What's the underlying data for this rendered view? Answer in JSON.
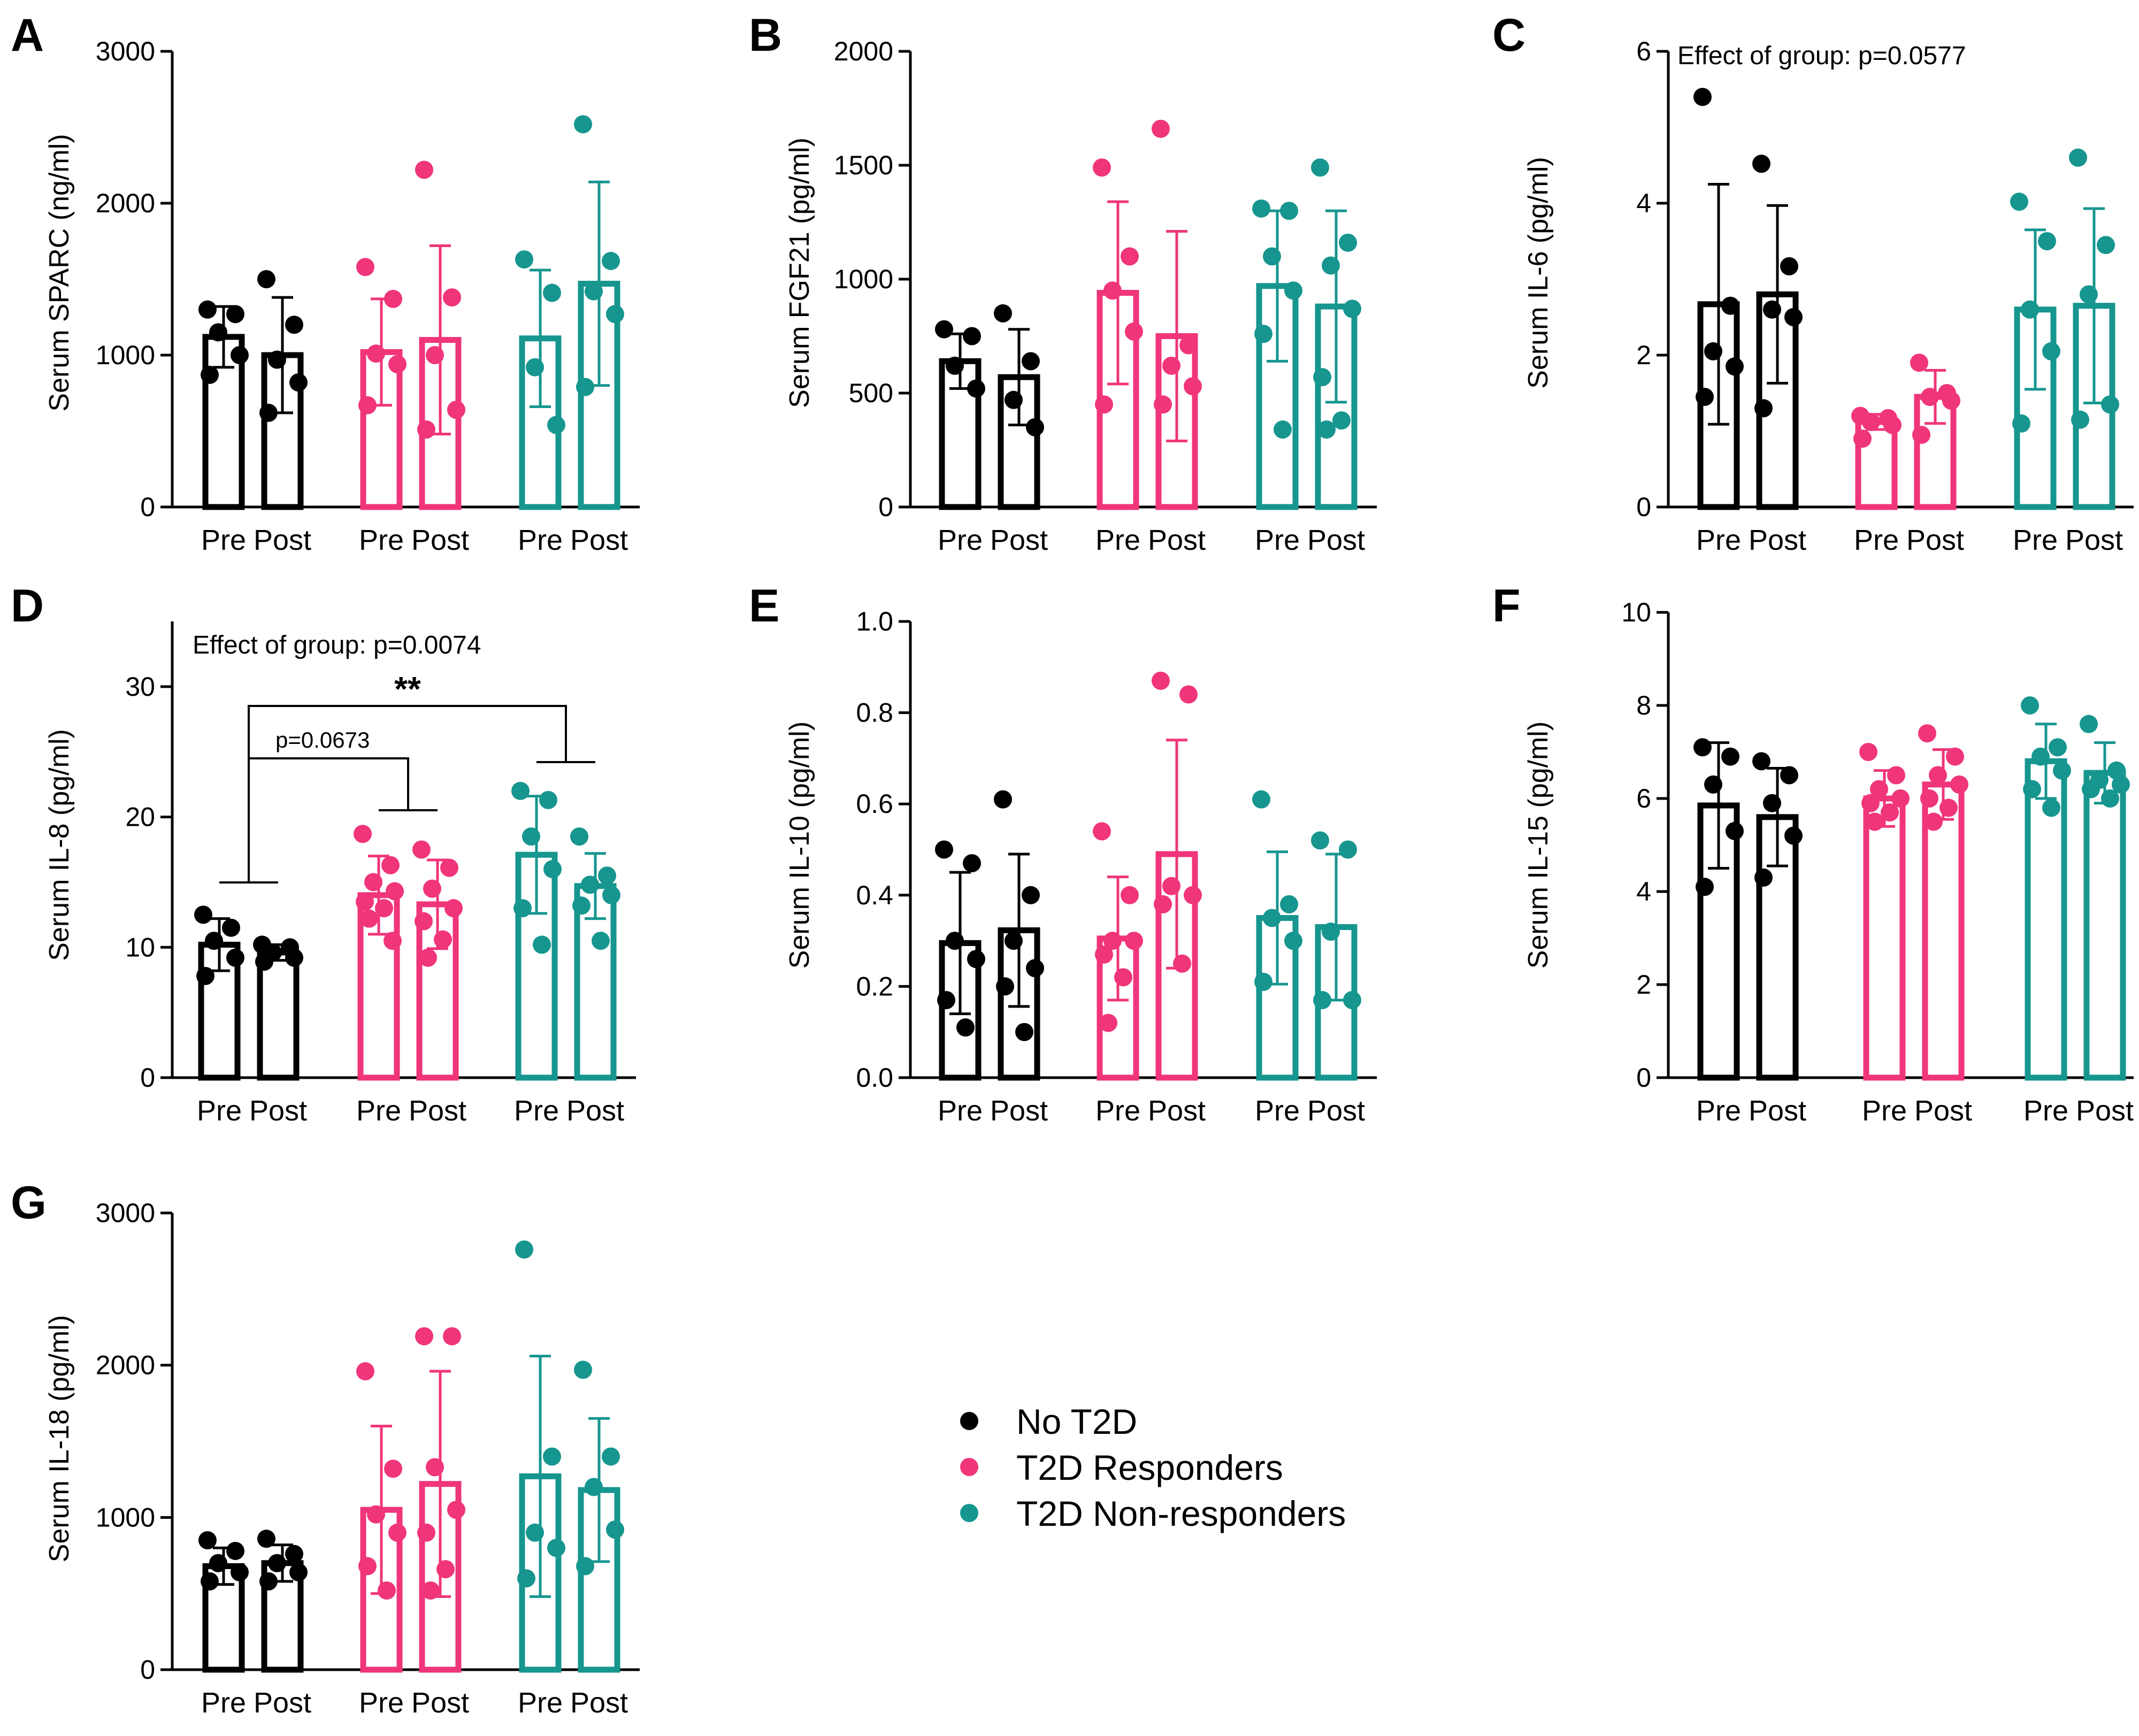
{
  "legend": [
    {
      "label": "No T2D",
      "color": "#000000"
    },
    {
      "label": "T2D Responders",
      "color": "#f0357a"
    },
    {
      "label": "T2D Non-responders",
      "color": "#16968f"
    }
  ],
  "chart_data": [
    {
      "panel": "A",
      "type": "bar",
      "ylabel": "Serum SPARC (ng/ml)",
      "ylim": [
        0,
        3000
      ],
      "yticks": [
        0,
        1000,
        2000,
        3000
      ],
      "tick_labels": [
        "0",
        "1000",
        "2000",
        "3000"
      ],
      "categories": [
        "Pre",
        "Post",
        "Pre",
        "Post",
        "Pre",
        "Post"
      ],
      "series": [
        {
          "name": "No T2D",
          "mean": [
            1120,
            1000
          ],
          "sd": [
            200,
            380
          ],
          "points": [
            [
              1300,
              1270,
              1150,
              1000,
              870
            ],
            [
              1500,
              1200,
              970,
              820,
              620
            ]
          ]
        },
        {
          "name": "T2D Responders",
          "mean": [
            1020,
            1100
          ],
          "sd": [
            350,
            620
          ],
          "points": [
            [
              1580,
              1370,
              1010,
              940,
              670
            ],
            [
              2220,
              1380,
              1000,
              640,
              510
            ]
          ]
        },
        {
          "name": "T2D Non-responders",
          "mean": [
            1110,
            1470
          ],
          "sd": [
            450,
            670
          ],
          "points": [
            [
              1630,
              1410,
              920,
              540
            ],
            [
              2520,
              1620,
              1420,
              1270,
              790
            ]
          ]
        }
      ]
    },
    {
      "panel": "B",
      "type": "bar",
      "ylabel": "Serum FGF21 (pg/ml)",
      "ylim": [
        0,
        2000
      ],
      "yticks": [
        0,
        500,
        1000,
        1500,
        2000
      ],
      "tick_labels": [
        "0",
        "500",
        "1000",
        "1500",
        "2000"
      ],
      "categories": [
        "Pre",
        "Post",
        "Pre",
        "Post",
        "Pre",
        "Post"
      ],
      "series": [
        {
          "name": "No T2D",
          "mean": [
            640,
            570
          ],
          "sd": [
            120,
            210
          ],
          "points": [
            [
              780,
              750,
              620,
              520
            ],
            [
              850,
              640,
              470,
              350
            ]
          ]
        },
        {
          "name": "T2D Responders",
          "mean": [
            940,
            750
          ],
          "sd": [
            400,
            460
          ],
          "points": [
            [
              1490,
              1100,
              950,
              770,
              450
            ],
            [
              1660,
              710,
              620,
              530,
              450
            ]
          ]
        },
        {
          "name": "T2D Non-responders",
          "mean": [
            970,
            880
          ],
          "sd": [
            330,
            420
          ],
          "points": [
            [
              1310,
              1300,
              1100,
              950,
              760,
              340
            ],
            [
              1490,
              1160,
              1060,
              870,
              570,
              380,
              340
            ]
          ]
        }
      ]
    },
    {
      "panel": "C",
      "type": "bar",
      "ylabel": "Serum IL-6 (pg/ml)",
      "ylim": [
        0,
        6
      ],
      "yticks": [
        0,
        2,
        4,
        6
      ],
      "tick_labels": [
        "0",
        "2",
        "4",
        "6"
      ],
      "categories": [
        "Pre",
        "Post",
        "Pre",
        "Post",
        "Pre",
        "Post"
      ],
      "annotation": "Effect of group: p=0.0577",
      "series": [
        {
          "name": "No T2D",
          "mean": [
            2.67,
            2.8
          ],
          "sd": [
            1.58,
            1.17
          ],
          "points": [
            [
              5.4,
              2.65,
              2.05,
              1.85,
              1.45
            ],
            [
              4.52,
              3.17,
              2.6,
              2.5,
              1.3
            ]
          ]
        },
        {
          "name": "T2D Responders",
          "mean": [
            1.12,
            1.45
          ],
          "sd": [
            0.1,
            0.35
          ],
          "points": [
            [
              1.2,
              1.17,
              1.12,
              1.08,
              0.9
            ],
            [
              1.9,
              1.5,
              1.45,
              1.4,
              0.95
            ]
          ]
        },
        {
          "name": "T2D Non-responders",
          "mean": [
            2.6,
            2.65
          ],
          "sd": [
            1.05,
            1.28
          ],
          "points": [
            [
              4.02,
              3.5,
              2.6,
              2.05,
              1.1
            ],
            [
              4.6,
              3.45,
              2.8,
              1.35,
              1.15
            ]
          ]
        }
      ]
    },
    {
      "panel": "D",
      "type": "bar",
      "ylabel": "Serum IL-8 (pg/ml)",
      "ylim": [
        0,
        35
      ],
      "yticks": [
        0,
        10,
        20,
        30
      ],
      "tick_labels": [
        "0",
        "10",
        "20",
        "30"
      ],
      "categories": [
        "Pre",
        "Post",
        "Pre",
        "Post",
        "Pre",
        "Post"
      ],
      "annotation": "Effect of group: p=0.0074",
      "significance": {
        "stars": "**",
        "p_text": "p=0.0673"
      },
      "series": [
        {
          "name": "No T2D",
          "mean": [
            10.2,
            9.6
          ],
          "sd": [
            2.0,
            0.6
          ],
          "points": [
            [
              12.5,
              11.5,
              10.5,
              9.2,
              7.8
            ],
            [
              10.2,
              10.0,
              9.6,
              9.2,
              8.9
            ]
          ]
        },
        {
          "name": "T2D Responders",
          "mean": [
            14.0,
            13.3
          ],
          "sd": [
            3.0,
            3.4
          ],
          "points": [
            [
              18.7,
              16.3,
              15.0,
              14.3,
              13.5,
              13.0,
              12.2,
              10.5
            ],
            [
              17.5,
              16.1,
              14.5,
              13.0,
              12.0,
              10.6,
              9.2
            ]
          ]
        },
        {
          "name": "T2D Non-responders",
          "mean": [
            17.1,
            14.7
          ],
          "sd": [
            4.5,
            2.5
          ],
          "points": [
            [
              22.0,
              21.3,
              18.5,
              16.0,
              13.0,
              10.2
            ],
            [
              18.5,
              15.5,
              14.8,
              14.0,
              13.2,
              10.5
            ]
          ]
        }
      ]
    },
    {
      "panel": "E",
      "type": "bar",
      "ylabel": "Serum IL-10 (pg/ml)",
      "ylim": [
        0,
        1.0
      ],
      "yticks": [
        0.0,
        0.2,
        0.4,
        0.6,
        0.8,
        1.0
      ],
      "tick_labels": [
        "0.0",
        "0.2",
        "0.4",
        "0.6",
        "0.8",
        "1.0"
      ],
      "categories": [
        "Pre",
        "Post",
        "Pre",
        "Post",
        "Pre",
        "Post"
      ],
      "series": [
        {
          "name": "No T2D",
          "mean": [
            0.295,
            0.323
          ],
          "sd": [
            0.155,
            0.167
          ],
          "points": [
            [
              0.5,
              0.47,
              0.3,
              0.26,
              0.17,
              0.11
            ],
            [
              0.61,
              0.4,
              0.3,
              0.24,
              0.2,
              0.1
            ]
          ]
        },
        {
          "name": "T2D Responders",
          "mean": [
            0.305,
            0.49
          ],
          "sd": [
            0.135,
            0.25
          ],
          "points": [
            [
              0.54,
              0.4,
              0.3,
              0.3,
              0.27,
              0.22,
              0.12
            ],
            [
              0.87,
              0.84,
              0.42,
              0.4,
              0.38,
              0.25
            ]
          ]
        },
        {
          "name": "T2D Non-responders",
          "mean": [
            0.35,
            0.33
          ],
          "sd": [
            0.145,
            0.16
          ],
          "points": [
            [
              0.61,
              0.38,
              0.35,
              0.3,
              0.21
            ],
            [
              0.52,
              0.5,
              0.32,
              0.17,
              0.17
            ]
          ]
        }
      ]
    },
    {
      "panel": "F",
      "type": "bar",
      "ylabel": "Serum IL-15 (pg/ml)",
      "ylim": [
        0,
        10
      ],
      "yticks": [
        0,
        2,
        4,
        6,
        8,
        10
      ],
      "tick_labels": [
        "0",
        "2",
        "4",
        "6",
        "8",
        "10"
      ],
      "categories": [
        "Pre",
        "Post",
        "Pre",
        "Post",
        "Pre",
        "Post"
      ],
      "series": [
        {
          "name": "No T2D",
          "mean": [
            5.85,
            5.6
          ],
          "sd": [
            1.35,
            1.05
          ],
          "points": [
            [
              7.1,
              6.9,
              6.3,
              5.3,
              4.1
            ],
            [
              6.8,
              6.5,
              5.9,
              5.2,
              4.3
            ]
          ]
        },
        {
          "name": "T2D Responders",
          "mean": [
            6.0,
            6.3
          ],
          "sd": [
            0.6,
            0.75
          ],
          "points": [
            [
              7.0,
              6.5,
              6.2,
              6.0,
              5.9,
              5.7,
              5.5
            ],
            [
              7.4,
              6.9,
              6.5,
              6.3,
              6.0,
              5.8,
              5.5
            ]
          ]
        },
        {
          "name": "T2D Non-responders",
          "mean": [
            6.8,
            6.55
          ],
          "sd": [
            0.8,
            0.65
          ],
          "points": [
            [
              8.0,
              7.1,
              6.9,
              6.6,
              6.2,
              5.8
            ],
            [
              7.6,
              6.6,
              6.4,
              6.3,
              6.2,
              6.0
            ]
          ]
        }
      ]
    },
    {
      "panel": "G",
      "type": "bar",
      "ylabel": "Serum IL-18 (pg/ml)",
      "ylim": [
        0,
        3000
      ],
      "yticks": [
        0,
        1000,
        2000,
        3000
      ],
      "tick_labels": [
        "0",
        "1000",
        "2000",
        "3000"
      ],
      "categories": [
        "Pre",
        "Post",
        "Pre",
        "Post",
        "Pre",
        "Post"
      ],
      "series": [
        {
          "name": "No T2D",
          "mean": [
            680,
            700
          ],
          "sd": [
            120,
            120
          ],
          "points": [
            [
              850,
              780,
              700,
              640,
              580
            ],
            [
              860,
              760,
              700,
              640,
              580
            ]
          ]
        },
        {
          "name": "T2D Responders",
          "mean": [
            1050,
            1220
          ],
          "sd": [
            550,
            740
          ],
          "points": [
            [
              1960,
              1320,
              1020,
              900,
              680,
              520
            ],
            [
              2190,
              2190,
              1330,
              1050,
              900,
              660,
              520
            ]
          ]
        },
        {
          "name": "T2D Non-responders",
          "mean": [
            1270,
            1180
          ],
          "sd": [
            790,
            470
          ],
          "points": [
            [
              2760,
              1400,
              900,
              800,
              600
            ],
            [
              1970,
              1400,
              1200,
              920,
              680
            ]
          ]
        }
      ]
    }
  ]
}
